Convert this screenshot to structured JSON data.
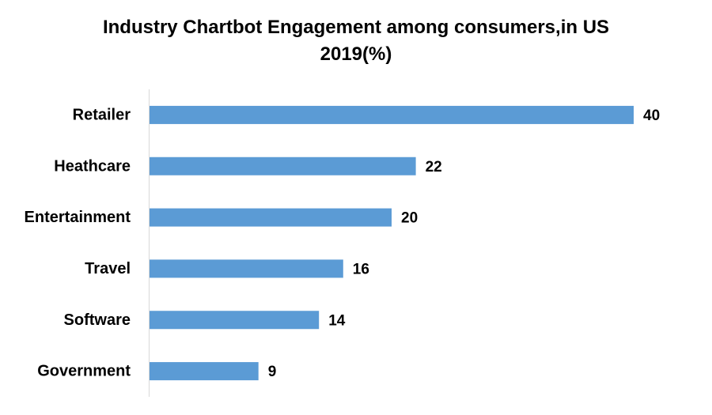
{
  "chart_data": {
    "type": "bar",
    "orientation": "horizontal",
    "title": "Industry Chartbot Engagement among consumers,in US 2019(%)",
    "categories": [
      "Retailer",
      "Heathcare",
      "Entertainment",
      "Travel",
      "Software",
      "Government"
    ],
    "values": [
      40,
      22,
      20,
      16,
      14,
      9
    ],
    "xlim": [
      0,
      40
    ],
    "grid": false,
    "legend": "none",
    "bar_color": "#5b9bd5",
    "axis_color": "#d9d9d9"
  }
}
